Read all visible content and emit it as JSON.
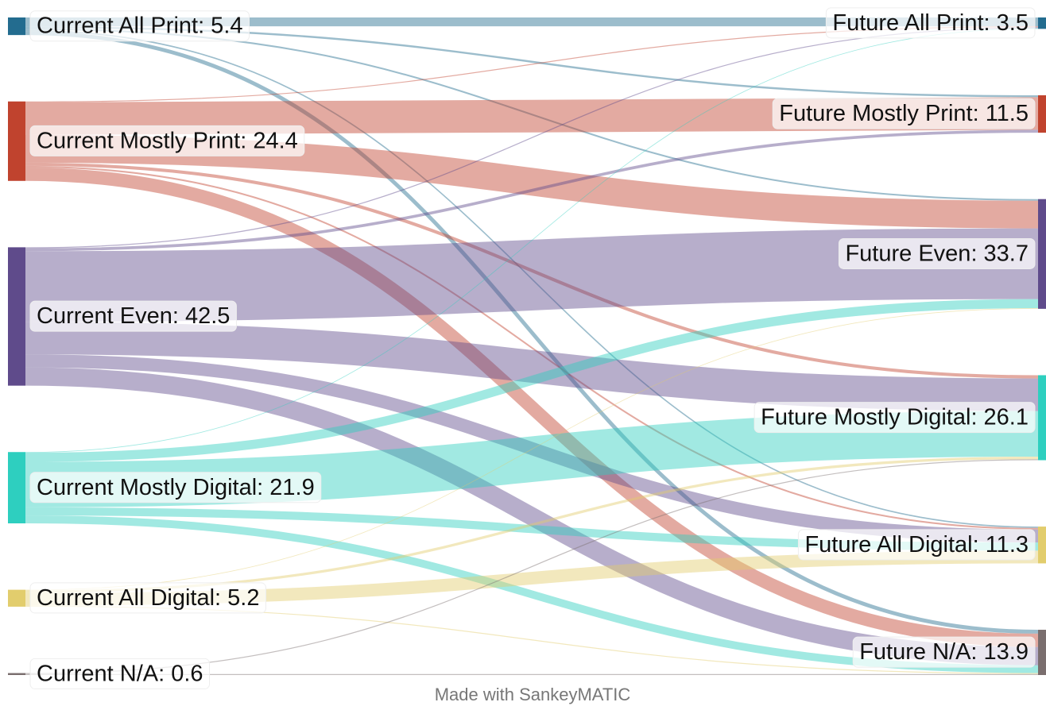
{
  "chart_data": {
    "type": "sankey",
    "footer": "Made with SankeyMATIC",
    "sources": [
      {
        "label": "Current All Print: 5.4",
        "value": 5.4,
        "color": "#236c8f"
      },
      {
        "label": "Current Mostly Print: 24.4",
        "value": 24.4,
        "color": "#c0432e"
      },
      {
        "label": "Current Even: 42.5",
        "value": 42.5,
        "color": "#5f4b8b"
      },
      {
        "label": "Current Mostly Digital: 21.9",
        "value": 21.9,
        "color": "#2ecfbf"
      },
      {
        "label": "Current All Digital: 5.2",
        "value": 5.2,
        "color": "#e2cd6d"
      },
      {
        "label": "Current N/A: 0.6",
        "value": 0.6,
        "color": "#7a6e6e"
      }
    ],
    "targets": [
      {
        "label": "Future All Print: 3.5",
        "value": 3.5,
        "color": "#236c8f"
      },
      {
        "label": "Future Mostly Print: 11.5",
        "value": 11.5,
        "color": "#c0432e"
      },
      {
        "label": "Future Even: 33.7",
        "value": 33.7,
        "color": "#5f4b8b"
      },
      {
        "label": "Future Mostly Digital: 26.1",
        "value": 26.1,
        "color": "#2ecfbf"
      },
      {
        "label": "Future All Digital: 11.3",
        "value": 11.3,
        "color": "#e2cd6d"
      },
      {
        "label": "Future N/A: 13.9",
        "value": 13.9,
        "color": "#7a6e6e"
      }
    ],
    "flows": [
      [
        2.7,
        0.6,
        0.5,
        0,
        0.4,
        1.2
      ],
      [
        0.3,
        10.0,
        8.5,
        1.0,
        0.5,
        4.1
      ],
      [
        0.3,
        0.9,
        21.7,
        10.0,
        4.0,
        5.6
      ],
      [
        0.2,
        0,
        2.8,
        14.0,
        2.5,
        2.4
      ],
      [
        0,
        0,
        0.2,
        0.8,
        3.9,
        0.3
      ],
      [
        0,
        0,
        0,
        0.3,
        0,
        0.3
      ]
    ]
  }
}
